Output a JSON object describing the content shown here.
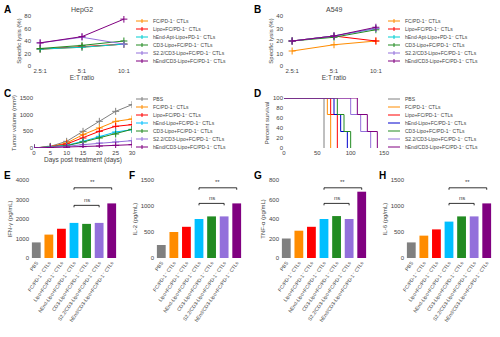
{
  "chart_data": [
    {
      "type": "line",
      "panel_label": "A",
      "title": "HepG2",
      "xlabel": "E:T ratio",
      "ylabel": "Specific lysis (%)",
      "categories": [
        "2.5:1",
        "5:1",
        "10:1"
      ],
      "ylim": [
        0,
        80
      ],
      "yticks": [
        0,
        20,
        40,
        60,
        80
      ],
      "grid": false,
      "marker": "plus",
      "series": [
        {
          "name": "FC/PD-1⁻ CTLs",
          "color": "#FF8C00",
          "values": [
            27,
            30,
            35
          ]
        },
        {
          "name": "Lipo+FC/PD-1⁻ CTLs",
          "color": "#FF0000",
          "values": [
            27,
            31,
            35
          ]
        },
        {
          "name": "hEnd-Apt-Lipo+PD-1⁻ CTLs",
          "color": "#00CED1",
          "values": [
            27,
            30,
            35
          ]
        },
        {
          "name": "CD3-Lipo+FC/PD-1⁻ CTLs",
          "color": "#228B22",
          "values": [
            28,
            33,
            40
          ]
        },
        {
          "name": "S2.2/CD3-Lipo+FC/PD-1⁻ CTLs",
          "color": "#9370DB",
          "values": [
            37,
            46,
            35
          ]
        },
        {
          "name": "hEnd/CD3-Lipo+FC/PD-1⁻ CTLs",
          "color": "#800080",
          "values": [
            37,
            47,
            75
          ]
        }
      ]
    },
    {
      "type": "line",
      "panel_label": "B",
      "title": "A549",
      "xlabel": "E:T ratio",
      "ylabel": "Specific lysis (%)",
      "categories": [
        "2.5:1",
        "5:1",
        "10:1"
      ],
      "ylim": [
        0,
        40
      ],
      "yticks": [
        0,
        10,
        20,
        30,
        40
      ],
      "grid": false,
      "marker": "plus",
      "series": [
        {
          "name": "FC/PD-1⁻ CTLs",
          "color": "#FF8C00",
          "values": [
            12,
            17,
            20
          ]
        },
        {
          "name": "Lipo+FC/PD-1⁻ CTLs",
          "color": "#FF0000",
          "values": [
            20,
            24,
            20
          ]
        },
        {
          "name": "hEnd-Apt-Lipo+PD-1⁻ CTLs",
          "color": "#00CED1",
          "values": [
            20,
            24,
            30
          ]
        },
        {
          "name": "CD3-Lipo+FC/PD-1⁻ CTLs",
          "color": "#228B22",
          "values": [
            20,
            23,
            29
          ]
        },
        {
          "name": "S2.2/CD3-Lipo+FC/PD-1⁻ CTLs",
          "color": "#9370DB",
          "values": [
            20,
            24,
            30
          ]
        },
        {
          "name": "hEnd/CD3-Lipo+FC/PD-1⁻ CTLs",
          "color": "#800080",
          "values": [
            20,
            24,
            31
          ]
        }
      ]
    },
    {
      "type": "line",
      "panel_label": "C",
      "xlabel": "Days post treatment (days)",
      "ylabel": "Tumor volume (mm³)",
      "x": [
        0,
        5,
        10,
        15,
        20,
        25,
        30
      ],
      "xlim": [
        0,
        30
      ],
      "xticks": [
        0,
        5,
        10,
        15,
        20,
        25,
        30
      ],
      "ylim": [
        0,
        1500
      ],
      "yticks": [
        0,
        500,
        1000,
        1500
      ],
      "grid": false,
      "marker": "plus",
      "series": [
        {
          "name": "PBS",
          "color": "#808080",
          "values": [
            0,
            50,
            200,
            500,
            800,
            1100,
            1300
          ]
        },
        {
          "name": "FC/PD-1⁻ CTLs",
          "color": "#FF8C00",
          "values": [
            0,
            40,
            150,
            400,
            600,
            800,
            870
          ]
        },
        {
          "name": "Lipo+FC/PD-1⁻ CTLs",
          "color": "#FF0000",
          "values": [
            0,
            40,
            120,
            300,
            500,
            650,
            700
          ]
        },
        {
          "name": "hEnd-Lipo+FC/PD-1⁻ CTLs",
          "color": "#00BFFF",
          "values": [
            0,
            30,
            80,
            200,
            350,
            480,
            550
          ]
        },
        {
          "name": "CD3-Lipo+FC/PD-1⁻ CTLs",
          "color": "#228B22",
          "values": [
            0,
            25,
            70,
            180,
            300,
            420,
            560
          ]
        },
        {
          "name": "S2.2/CD3-Lipo+FC/PD-1⁻ CTLs",
          "color": "#9370DB",
          "values": [
            0,
            20,
            50,
            100,
            150,
            180,
            220
          ]
        },
        {
          "name": "hEnd/CD3-Lipo+FC/PD-1⁻ CTLs",
          "color": "#800080",
          "values": [
            0,
            10,
            20,
            40,
            60,
            80,
            100
          ]
        }
      ]
    },
    {
      "type": "line",
      "panel_label": "D",
      "ylabel": "Percent survival",
      "xlim": [
        0,
        150
      ],
      "xticks": [
        0,
        50,
        100,
        150
      ],
      "ylim": [
        0,
        100
      ],
      "yticks": [
        0,
        20,
        40,
        60,
        80,
        100
      ],
      "grid": false,
      "series": [
        {
          "name": "PBS",
          "color": "#808080",
          "x": [
            0,
            60,
            60
          ],
          "values": [
            100,
            100,
            0
          ]
        },
        {
          "name": "FC/PD-1⁻ CTLs",
          "color": "#FF8C00",
          "x": [
            0,
            65,
            65,
            70,
            70
          ],
          "values": [
            100,
            100,
            67,
            67,
            0
          ]
        },
        {
          "name": "Lipo+FC/PD-1⁻ CTLs",
          "color": "#FF0000",
          "x": [
            0,
            70,
            70,
            80,
            80
          ],
          "values": [
            100,
            100,
            67,
            67,
            0
          ]
        },
        {
          "name": "hEnd-Lipo+FC/PD-1⁻ CTLs",
          "color": "#0000CD",
          "x": [
            0,
            75,
            75,
            85,
            85,
            95,
            95
          ],
          "values": [
            100,
            100,
            67,
            67,
            33,
            33,
            0
          ]
        },
        {
          "name": "CD3-Lipo+FC/PD-1⁻ CTLs",
          "color": "#228B22",
          "x": [
            0,
            80,
            80,
            90,
            90,
            100,
            100
          ],
          "values": [
            100,
            100,
            67,
            67,
            33,
            33,
            0
          ]
        },
        {
          "name": "S2.2/CD3-Lipo+FC/PD-1⁻ CTLs",
          "color": "#9370DB",
          "x": [
            0,
            100,
            100,
            115,
            115,
            130,
            130
          ],
          "values": [
            100,
            100,
            67,
            67,
            33,
            33,
            0
          ]
        },
        {
          "name": "hEnd/CD3-Lipo+FC/PD-1⁻ CTLs",
          "color": "#800080",
          "x": [
            0,
            110,
            110,
            125,
            125,
            140,
            140
          ],
          "values": [
            100,
            100,
            67,
            67,
            33,
            33,
            0
          ]
        }
      ]
    },
    {
      "type": "bar",
      "panel_label": "E",
      "ylabel": "IFN-γ (pg/mL)",
      "categories": [
        "PBS",
        "FC/PD-1⁻ CTLs",
        "Lipo+FC/PD-1⁻ CTLs",
        "hEnd-Lipo+FC/PD-1⁻ CTLs",
        "CD3-Lipo+FC/PD-1⁻ CTLs",
        "S2.2/CD3-Lipo+FC/PD-1⁻ CTLs",
        "hEnd/CD3-Lipo+FC/PD-1⁻ CTLs"
      ],
      "values": [
        800,
        1200,
        1500,
        1800,
        1750,
        1800,
        2800
      ],
      "colors": [
        "#808080",
        "#FF8C00",
        "#FF0000",
        "#00BFFF",
        "#228B22",
        "#9370DB",
        "#800080"
      ],
      "ylim": [
        0,
        4000
      ],
      "yticks": [
        0,
        1000,
        2000,
        3000,
        4000
      ],
      "grid": false,
      "annotations": [
        {
          "text": "**",
          "from": "hEnd-Lipo+FC/PD-1⁻ CTLs",
          "to": "hEnd/CD3-Lipo+FC/PD-1⁻ CTLs",
          "y": 3600
        },
        {
          "text": "ns",
          "from": "hEnd-Lipo+FC/PD-1⁻ CTLs",
          "to": "S2.2/CD3-Lipo+FC/PD-1⁻ CTLs",
          "y": 2700
        }
      ]
    },
    {
      "type": "bar",
      "panel_label": "F",
      "ylabel": "IL-2 (pg/mL)",
      "categories": [
        "PBS",
        "FC/PD-1⁻ CTLs",
        "Lipo+FC/PD-1⁻ CTLs",
        "hEnd-Lipo+FC/PD-1⁻ CTLs",
        "CD3-Lipo+FC/PD-1⁻ CTLs",
        "S2.2/CD3-Lipo+FC/PD-1⁻ CTLs",
        "hEnd/CD3-Lipo+FC/PD-1⁻ CTLs"
      ],
      "values": [
        250,
        500,
        600,
        750,
        800,
        800,
        1050
      ],
      "colors": [
        "#808080",
        "#FF8C00",
        "#FF0000",
        "#00BFFF",
        "#228B22",
        "#9370DB",
        "#800080"
      ],
      "ylim": [
        0,
        1500
      ],
      "yticks": [
        0,
        500,
        1000,
        1500
      ],
      "grid": false,
      "annotations": [
        {
          "text": "**",
          "from": "hEnd-Lipo+FC/PD-1⁻ CTLs",
          "to": "hEnd/CD3-Lipo+FC/PD-1⁻ CTLs",
          "y": 1350
        },
        {
          "text": "ns",
          "from": "hEnd-Lipo+FC/PD-1⁻ CTLs",
          "to": "S2.2/CD3-Lipo+FC/PD-1⁻ CTLs",
          "y": 1050
        }
      ]
    },
    {
      "type": "bar",
      "panel_label": "G",
      "ylabel": "TNF-α (pg/mL)",
      "categories": [
        "PBS",
        "FC/PD-1⁻ CTLs",
        "Lipo+FC/PD-1⁻ CTLs",
        "hEnd-Lipo+FC/PD-1⁻ CTLs",
        "CD3-Lipo+FC/PD-1⁻ CTLs",
        "S2.2/CD3-Lipo+FC/PD-1⁻ CTLs",
        "hEnd/CD3-Lipo+FC/PD-1⁻ CTLs"
      ],
      "values": [
        200,
        280,
        320,
        400,
        430,
        400,
        680
      ],
      "colors": [
        "#808080",
        "#FF8C00",
        "#FF0000",
        "#00BFFF",
        "#228B22",
        "#9370DB",
        "#800080"
      ],
      "ylim": [
        0,
        800
      ],
      "yticks": [
        0,
        200,
        400,
        600,
        800
      ],
      "grid": false,
      "annotations": [
        {
          "text": "**",
          "from": "hEnd-Lipo+FC/PD-1⁻ CTLs",
          "to": "hEnd/CD3-Lipo+FC/PD-1⁻ CTLs",
          "y": 720
        },
        {
          "text": "ns",
          "from": "hEnd-Lipo+FC/PD-1⁻ CTLs",
          "to": "S2.2/CD3-Lipo+FC/PD-1⁻ CTLs",
          "y": 560
        }
      ]
    },
    {
      "type": "bar",
      "panel_label": "H",
      "ylabel": "IL-6 (pg/mL)",
      "categories": [
        "PBS",
        "FC/PD-1⁻ CTLs",
        "Lipo+FC/PD-1⁻ CTLs",
        "hEnd-Lipo+FC/PD-1⁻ CTLs",
        "CD3-Lipo+FC/PD-1⁻ CTLs",
        "S2.2/CD3-Lipo+FC/PD-1⁻ CTLs",
        "hEnd/CD3-Lipo+FC/PD-1⁻ CTLs"
      ],
      "values": [
        300,
        430,
        550,
        700,
        800,
        800,
        1050
      ],
      "colors": [
        "#808080",
        "#FF8C00",
        "#FF0000",
        "#00BFFF",
        "#228B22",
        "#9370DB",
        "#800080"
      ],
      "ylim": [
        0,
        1500
      ],
      "yticks": [
        0,
        500,
        1000,
        1500
      ],
      "grid": false,
      "annotations": [
        {
          "text": "**",
          "from": "hEnd-Lipo+FC/PD-1⁻ CTLs",
          "to": "hEnd/CD3-Lipo+FC/PD-1⁻ CTLs",
          "y": 1350
        },
        {
          "text": "ns",
          "from": "hEnd-Lipo+FC/PD-1⁻ CTLs",
          "to": "S2.2/CD3-Lipo+FC/PD-1⁻ CTLs",
          "y": 1050
        }
      ]
    }
  ]
}
